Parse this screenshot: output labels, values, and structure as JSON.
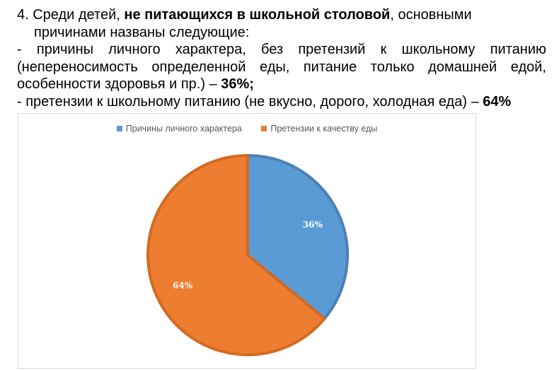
{
  "text": {
    "p1_a": "4. Среди детей, ",
    "p1_bold": "не питающихся в школьной столовой",
    "p1_b": ", основными",
    "p1_line2": "причинами названы следующие:",
    "p2": "- причины личного характера, без претензий к школьному питанию (непереносимость определенной еды, питание только домашней едой, особенности здоровья и пр.) – ",
    "p2_bold": "36%;",
    "p3": "- претензии к школьному питанию (не вкусно, дорого, холодная еда) – ",
    "p3_bold": "64%"
  },
  "chart_data": {
    "type": "pie",
    "title": "",
    "legend_position": "top",
    "categories": [
      "Причины личного характера",
      "Претензии к качеству еды"
    ],
    "values": [
      36,
      64
    ],
    "labels": [
      "36%",
      "64%"
    ],
    "colors": [
      "#5b9bd5",
      "#ed7d31"
    ],
    "border_colors": [
      "#4a80b6",
      "#d36a22"
    ]
  }
}
